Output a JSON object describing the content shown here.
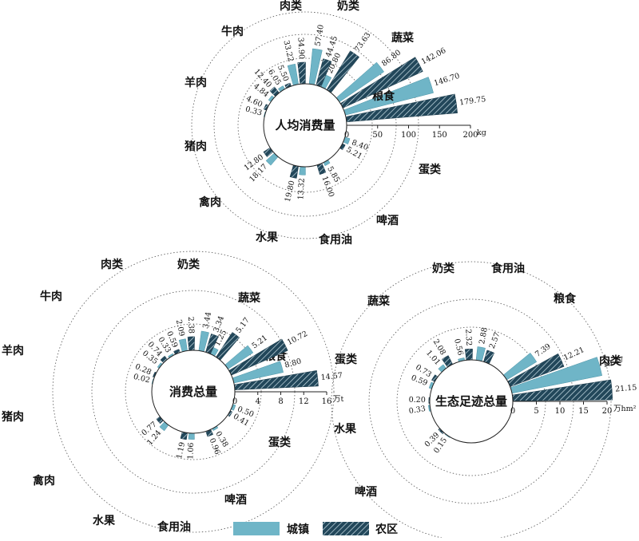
{
  "chart_data": [
    {
      "type": "radial-bar",
      "title": "人均消费量",
      "unit": "kg",
      "axis_ticks": [
        "0",
        "50",
        "100",
        "150",
        "200"
      ],
      "axis_max": 200,
      "categories": [
        "粮食",
        "蔬菜",
        "奶类",
        "肉类",
        "牛肉",
        "羊肉",
        "猪肉",
        "禽肉",
        "水果",
        "食用油",
        "啤酒",
        "蛋类"
      ],
      "series": [
        {
          "name": "城镇",
          "values": [
            146.7,
            86.8,
            20.8,
            57.4,
            33.22,
            6.05,
            4.84,
            0.33,
            18.17,
            13.32,
            5.85,
            8.4
          ],
          "labels": [
            "146.70",
            "86.80",
            "20.80",
            "57.40",
            "33.22",
            "6.05",
            "4.84",
            "0.33",
            "18.17",
            "13.32",
            "5.85",
            "8.40"
          ]
        },
        {
          "name": "农区",
          "values": [
            179.75,
            142.06,
            73.63,
            44.45,
            34.9,
            5.5,
            12.4,
            4.6,
            12.8,
            19.8,
            16.0,
            5.21
          ],
          "labels": [
            "179.75",
            "142.06",
            "73.63",
            "44.45",
            "34.90",
            "5.50",
            "12.40",
            "4.60",
            "12.80",
            "19.80",
            "16.00",
            "5.21"
          ]
        }
      ]
    },
    {
      "type": "radial-bar",
      "title": "消费总量",
      "unit": "万t",
      "axis_ticks": [
        "0",
        "4",
        "8",
        "12",
        "16"
      ],
      "axis_max": 16,
      "categories": [
        "粮食",
        "蔬菜",
        "奶类",
        "肉类",
        "牛肉",
        "羊肉",
        "猪肉",
        "禽肉",
        "水果",
        "食用油",
        "啤酒",
        "蛋类"
      ],
      "series": [
        {
          "name": "城镇",
          "values": [
            8.8,
            5.21,
            1.25,
            3.44,
            2.09,
            0.33,
            0.35,
            0.02,
            1.24,
            1.06,
            0.38,
            0.5
          ],
          "labels": [
            "8.80",
            "5.21",
            "1.25",
            "3.44",
            "2.09",
            "0.33",
            "0.35",
            "0.02",
            "1.24",
            "1.06",
            "0.38",
            "0.50"
          ]
        },
        {
          "name": "农区",
          "values": [
            14.57,
            10.72,
            5.17,
            3.34,
            2.38,
            0.59,
            0.74,
            0.28,
            0.77,
            1.19,
            0.96,
            0.41
          ],
          "labels": [
            "14.57",
            "10.72",
            "5.17",
            "3.34",
            "2.38",
            "0.59",
            "0.74",
            "0.28",
            "0.77",
            "1.19",
            "0.96",
            "0.41"
          ]
        }
      ]
    },
    {
      "type": "radial-bar",
      "title": "生态足迹总量",
      "unit": "万hm²",
      "axis_ticks": [
        "0",
        "5",
        "10",
        "15",
        "20"
      ],
      "axis_max": 20,
      "categories": [
        "肉类",
        "粮食",
        "食用油",
        "奶类",
        "蔬菜",
        "蛋类",
        "水果",
        "啤酒"
      ],
      "series": [
        {
          "name": "城镇",
          "values": [
            19.47,
            7.39,
            2.88,
            0.56,
            1.01,
            0.59,
            0.33,
            0.15
          ],
          "labels": [
            "19.47",
            "7.39",
            "2.88",
            "0.56",
            "1.01",
            "0.59",
            "0.33",
            "0.15"
          ]
        },
        {
          "name": "农区",
          "values": [
            21.15,
            12.21,
            2.57,
            2.32,
            2.08,
            0.73,
            0.2,
            0.39
          ],
          "labels": [
            "21.15",
            "12.21",
            "2.57",
            "2.32",
            "2.08",
            "0.73",
            "0.20",
            "0.39"
          ]
        }
      ]
    }
  ],
  "legend": {
    "urban": "城镇",
    "rural": "农区"
  },
  "colors": {
    "urban_fill": "#6fb5c7",
    "rural_fill": "#22475a",
    "rural_hatch": "#cfe3ea"
  }
}
